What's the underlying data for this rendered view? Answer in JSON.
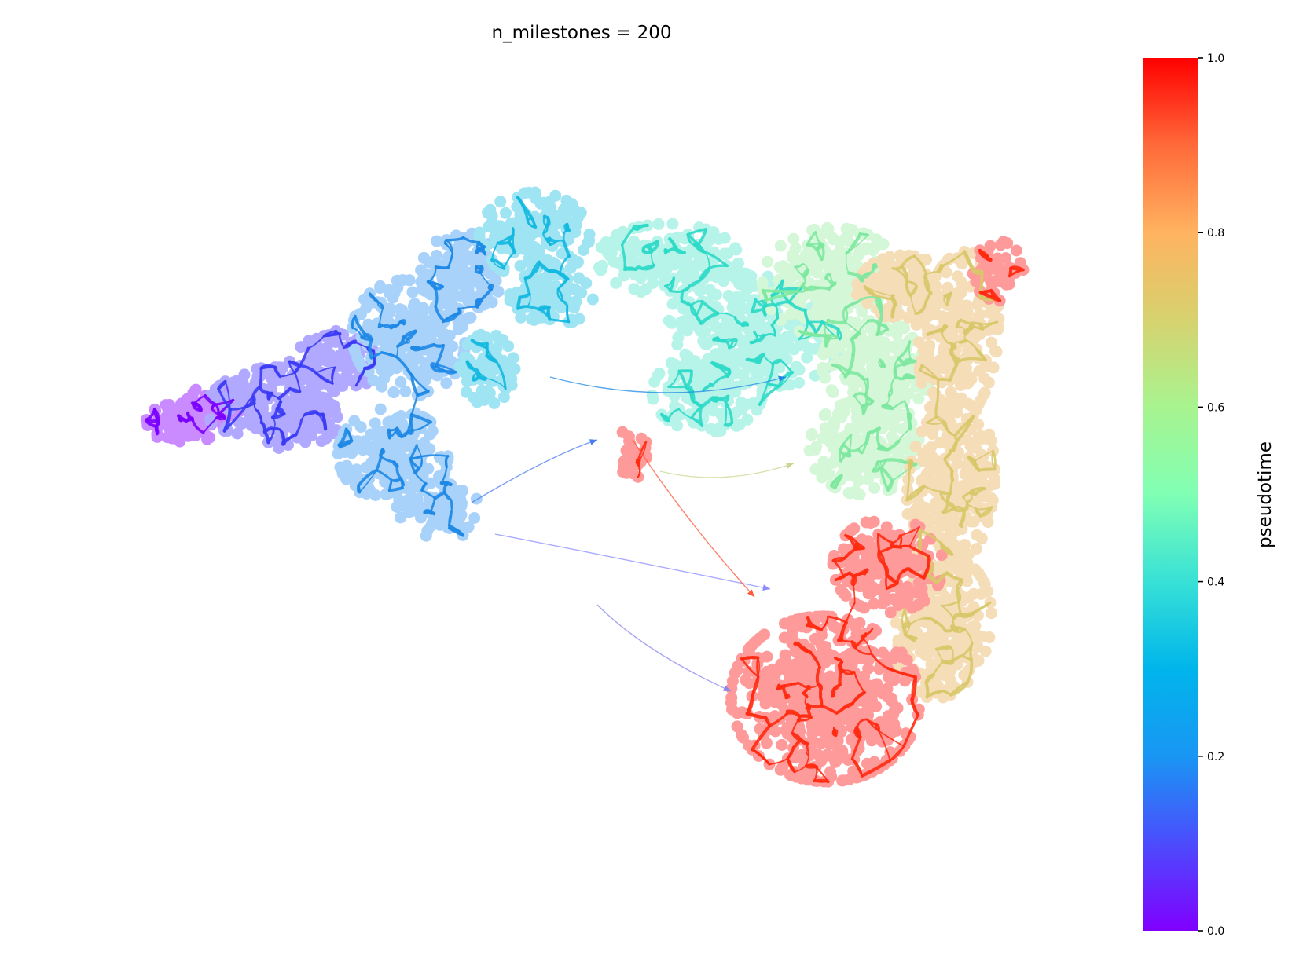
{
  "chart_data": {
    "type": "scatter",
    "title": "n_milestones = 200",
    "xlabel": "",
    "ylabel": "",
    "axes_visible": false,
    "grid": false,
    "colormap": "rainbow",
    "colorbar": {
      "label": "pseudotime",
      "range": [
        0,
        1
      ],
      "ticks": [
        0.0,
        0.2,
        0.4,
        0.6,
        0.8,
        1.0
      ],
      "tick_labels": [
        "0.0",
        "0.2",
        "0.4",
        "0.6",
        "0.8",
        "1.0"
      ],
      "placement": "right"
    },
    "clusters": [
      {
        "pseudotime": 0.02,
        "cell_color": "#c98bff",
        "edge_color": "#7a00ff"
      },
      {
        "pseudotime": 0.12,
        "cell_color": "#b1a9ff",
        "edge_color": "#3b3bf5"
      },
      {
        "pseudotime": 0.22,
        "cell_color": "#a8d2fa",
        "edge_color": "#1e88e5"
      },
      {
        "pseudotime": 0.3,
        "cell_color": "#9fe4f2",
        "edge_color": "#14b8e0"
      },
      {
        "pseudotime": 0.42,
        "cell_color": "#b6f3e8",
        "edge_color": "#2fd9c8"
      },
      {
        "pseudotime": 0.55,
        "cell_color": "#d4f7d8",
        "edge_color": "#7ee8a0"
      },
      {
        "pseudotime": 0.72,
        "cell_color": "#f5ddb8",
        "edge_color": "#d8c86a"
      },
      {
        "pseudotime": 0.97,
        "cell_color": "#ff9a9a",
        "edge_color": "#ff2a10"
      }
    ]
  }
}
